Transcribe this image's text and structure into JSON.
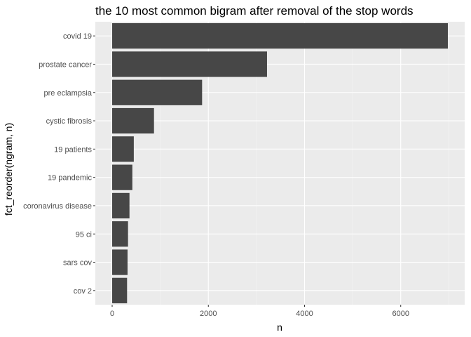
{
  "chart_data": {
    "type": "bar",
    "orientation": "horizontal",
    "title": "the 10 most common bigram after removal of the stop words",
    "xlabel": "n",
    "ylabel": "fct_reorder(ngram, n)",
    "categories": [
      "covid 19",
      "prostate cancer",
      "pre eclampsia",
      "cystic fibrosis",
      "19 patients",
      "19 pandemic",
      "coronavirus disease",
      "95 ci",
      "sars cov",
      "cov 2"
    ],
    "values": [
      6980,
      3220,
      1870,
      870,
      450,
      420,
      360,
      330,
      320,
      310
    ],
    "xlim": [
      -350,
      7330
    ],
    "xticks": [
      0,
      2000,
      4000,
      6000
    ],
    "grid": true,
    "legend": "none",
    "colors": {
      "bar": "#474747",
      "panel": "#ebebeb",
      "grid_major": "#ffffff",
      "grid_minor": "#f5f5f5",
      "tick_label": "#4d4d4d",
      "tick_mark": "#333333"
    }
  }
}
